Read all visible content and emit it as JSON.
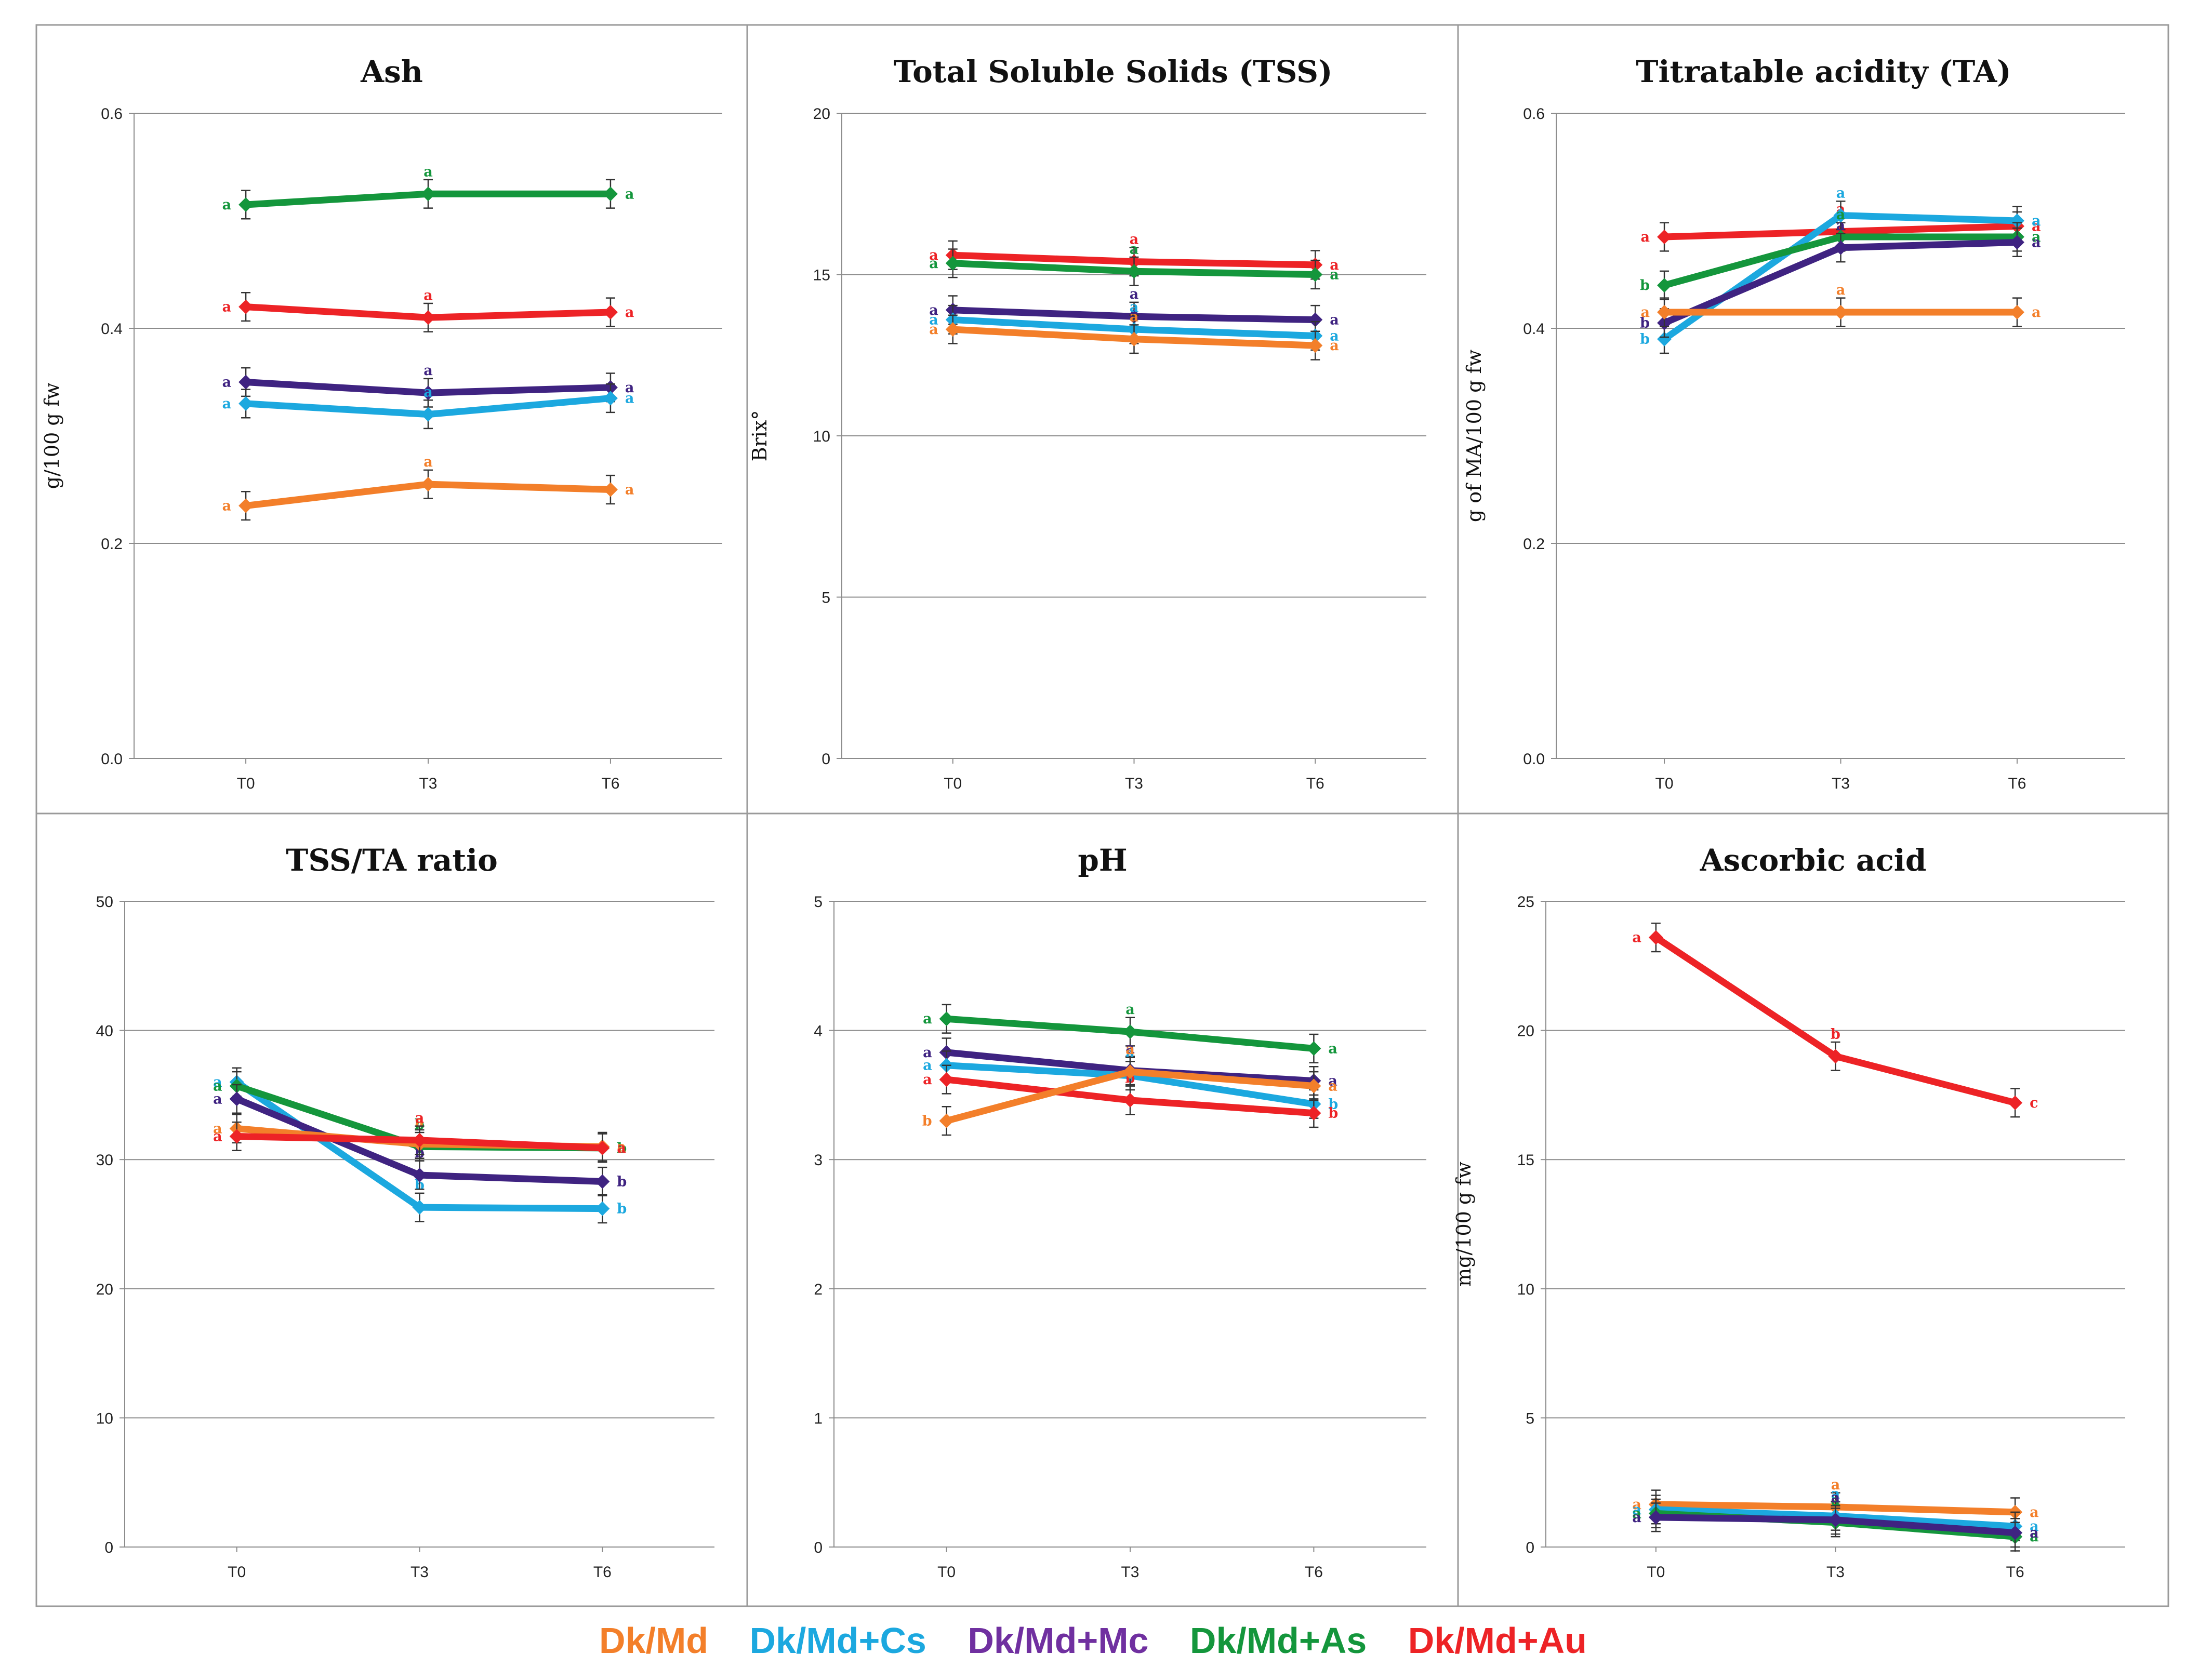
{
  "x_categories": [
    "T0",
    "T3",
    "T6"
  ],
  "legend": [
    {
      "name": "Dk/Md",
      "color": "#F37F2A"
    },
    {
      "name": "Dk/Md+Cs",
      "color": "#1CA8DF"
    },
    {
      "name": "Dk/Md+Mc",
      "color": "#7030A0"
    },
    {
      "name": "Dk/Md+As",
      "color": "#14963C"
    },
    {
      "name": "Dk/Md+Au",
      "color": "#ED2326"
    }
  ],
  "chart_data": [
    {
      "type": "line",
      "title": "Ash",
      "xlabel": "",
      "ylabel": "g/100 g fw",
      "ylim": [
        0,
        0.6
      ],
      "yticks": [
        "0.0",
        "0.2",
        "0.4",
        "0.6"
      ],
      "categories": [
        "T0",
        "T3",
        "T6"
      ],
      "series": [
        {
          "name": "Dk/Md+As",
          "color": "#14963C",
          "values": [
            0.515,
            0.525,
            0.525
          ],
          "letters": [
            "a",
            "a",
            "a"
          ]
        },
        {
          "name": "Dk/Md+Au",
          "color": "#ED2326",
          "values": [
            0.42,
            0.41,
            0.415
          ],
          "letters": [
            "a",
            "a",
            "a"
          ]
        },
        {
          "name": "Dk/Md+Mc",
          "color": "#3F2381",
          "values": [
            0.35,
            0.34,
            0.345
          ],
          "letters": [
            "a",
            "a",
            "a"
          ]
        },
        {
          "name": "Dk/Md+Cs",
          "color": "#1CA8DF",
          "values": [
            0.33,
            0.32,
            0.335
          ],
          "letters": [
            "a",
            "a",
            "a"
          ]
        },
        {
          "name": "Dk/Md",
          "color": "#F37F2A",
          "values": [
            0.235,
            0.255,
            0.25
          ],
          "letters": [
            "a",
            "a",
            "a"
          ]
        }
      ]
    },
    {
      "type": "line",
      "title": "Total Soluble Solids (TSS)",
      "xlabel": "",
      "ylabel": "Brix°",
      "ylim": [
        0,
        20
      ],
      "yticks": [
        "0",
        "5",
        "10",
        "15",
        "20"
      ],
      "categories": [
        "T0",
        "T3",
        "T6"
      ],
      "series": [
        {
          "name": "Dk/Md+Au",
          "color": "#ED2326",
          "values": [
            15.6,
            15.4,
            15.3
          ],
          "letters": [
            "a",
            "a",
            "a"
          ]
        },
        {
          "name": "Dk/Md+As",
          "color": "#14963C",
          "values": [
            15.35,
            15.1,
            15.0
          ],
          "letters": [
            "a",
            "a",
            "a"
          ]
        },
        {
          "name": "Dk/Md+Mc",
          "color": "#3F2381",
          "values": [
            13.9,
            13.7,
            13.6
          ],
          "letters": [
            "a",
            "a",
            "a"
          ]
        },
        {
          "name": "Dk/Md+Cs",
          "color": "#1CA8DF",
          "values": [
            13.6,
            13.3,
            13.1
          ],
          "letters": [
            "a",
            "a",
            "a"
          ]
        },
        {
          "name": "Dk/Md",
          "color": "#F37F2A",
          "values": [
            13.3,
            13.0,
            12.8
          ],
          "letters": [
            "a",
            "a",
            "a"
          ]
        }
      ]
    },
    {
      "type": "line",
      "title": "Titratable acidity (TA)",
      "xlabel": "",
      "ylabel": "g of MA/100 g fw",
      "ylim": [
        0,
        0.6
      ],
      "yticks": [
        "0.0",
        "0.2",
        "0.4",
        "0.6"
      ],
      "categories": [
        "T0",
        "T3",
        "T6"
      ],
      "series": [
        {
          "name": "Dk/Md+Au",
          "color": "#ED2326",
          "values": [
            0.485,
            0.49,
            0.495
          ],
          "letters": [
            "a",
            "a",
            "a"
          ]
        },
        {
          "name": "Dk/Md+Cs",
          "color": "#1CA8DF",
          "values": [
            0.39,
            0.505,
            0.5
          ],
          "letters": [
            "b",
            "a",
            "a"
          ]
        },
        {
          "name": "Dk/Md+As",
          "color": "#14963C",
          "values": [
            0.44,
            0.485,
            0.485
          ],
          "letters": [
            "b",
            "a",
            "a"
          ]
        },
        {
          "name": "Dk/Md+Mc",
          "color": "#3F2381",
          "values": [
            0.405,
            0.475,
            0.48
          ],
          "letters": [
            "b",
            "a",
            "a"
          ]
        },
        {
          "name": "Dk/Md",
          "color": "#F37F2A",
          "values": [
            0.415,
            0.415,
            0.415
          ],
          "letters": [
            "a",
            "a",
            "a"
          ]
        }
      ]
    },
    {
      "type": "line",
      "title": "TSS/TA ratio",
      "xlabel": "",
      "ylabel": "",
      "ylim": [
        0,
        50
      ],
      "yticks": [
        "0",
        "10",
        "20",
        "30",
        "40",
        "50"
      ],
      "categories": [
        "T0",
        "T3",
        "T6"
      ],
      "series": [
        {
          "name": "Dk/Md+Cs",
          "color": "#1CA8DF",
          "values": [
            36.0,
            26.3,
            26.2
          ],
          "letters": [
            "a",
            "b",
            "b"
          ]
        },
        {
          "name": "Dk/Md+As",
          "color": "#14963C",
          "values": [
            35.7,
            31.0,
            30.9
          ],
          "letters": [
            "a",
            "b",
            "b"
          ]
        },
        {
          "name": "Dk/Md+Mc",
          "color": "#3F2381",
          "values": [
            34.7,
            28.8,
            28.3
          ],
          "letters": [
            "a",
            "b",
            "b"
          ]
        },
        {
          "name": "Dk/Md",
          "color": "#F37F2A",
          "values": [
            32.4,
            31.2,
            31.0
          ],
          "letters": [
            "a",
            "a",
            "a"
          ]
        },
        {
          "name": "Dk/Md+Au",
          "color": "#ED2326",
          "values": [
            31.8,
            31.5,
            30.9
          ],
          "letters": [
            "a",
            "a",
            "a"
          ]
        }
      ]
    },
    {
      "type": "line",
      "title": "pH",
      "xlabel": "",
      "ylabel": "",
      "ylim": [
        0,
        5
      ],
      "yticks": [
        "0",
        "1",
        "2",
        "3",
        "4",
        "5"
      ],
      "categories": [
        "T0",
        "T3",
        "T6"
      ],
      "series": [
        {
          "name": "Dk/Md+As",
          "color": "#14963C",
          "values": [
            4.09,
            3.99,
            3.86
          ],
          "letters": [
            "a",
            "a",
            "a"
          ]
        },
        {
          "name": "Dk/Md+Mc",
          "color": "#3F2381",
          "values": [
            3.83,
            3.69,
            3.61
          ],
          "letters": [
            "a",
            "a",
            "a"
          ]
        },
        {
          "name": "Dk/Md+Cs",
          "color": "#1CA8DF",
          "values": [
            3.73,
            3.65,
            3.43
          ],
          "letters": [
            "a",
            "a",
            "b"
          ]
        },
        {
          "name": "Dk/Md+Au",
          "color": "#ED2326",
          "values": [
            3.62,
            3.46,
            3.36
          ],
          "letters": [
            "a",
            "b",
            "b"
          ]
        },
        {
          "name": "Dk/Md",
          "color": "#F37F2A",
          "values": [
            3.3,
            3.68,
            3.57
          ],
          "letters": [
            "b",
            "a",
            "a"
          ]
        }
      ]
    },
    {
      "type": "line",
      "title": "Ascorbic acid",
      "xlabel": "",
      "ylabel": "mg/100 g fw",
      "ylim": [
        0,
        25
      ],
      "yticks": [
        "0",
        "5",
        "10",
        "15",
        "20",
        "25"
      ],
      "categories": [
        "T0",
        "T3",
        "T6"
      ],
      "series": [
        {
          "name": "Dk/Md+Au",
          "color": "#ED2326",
          "values": [
            23.6,
            19.0,
            17.2
          ],
          "letters": [
            "a",
            "b",
            "c"
          ]
        },
        {
          "name": "Dk/Md",
          "color": "#F37F2A",
          "values": [
            1.65,
            1.55,
            1.35
          ],
          "letters": [
            "a",
            "a",
            "a"
          ]
        },
        {
          "name": "Dk/Md+Cs",
          "color": "#1CA8DF",
          "values": [
            1.45,
            1.2,
            0.8
          ],
          "letters": [
            "a",
            "a",
            "a"
          ]
        },
        {
          "name": "Dk/Md+As",
          "color": "#14963C",
          "values": [
            1.3,
            0.95,
            0.4
          ],
          "letters": [
            "a",
            "a",
            "a"
          ]
        },
        {
          "name": "Dk/Md+Mc",
          "color": "#3F2381",
          "values": [
            1.15,
            1.05,
            0.55
          ],
          "letters": [
            "a",
            "a",
            "a"
          ]
        }
      ]
    }
  ]
}
